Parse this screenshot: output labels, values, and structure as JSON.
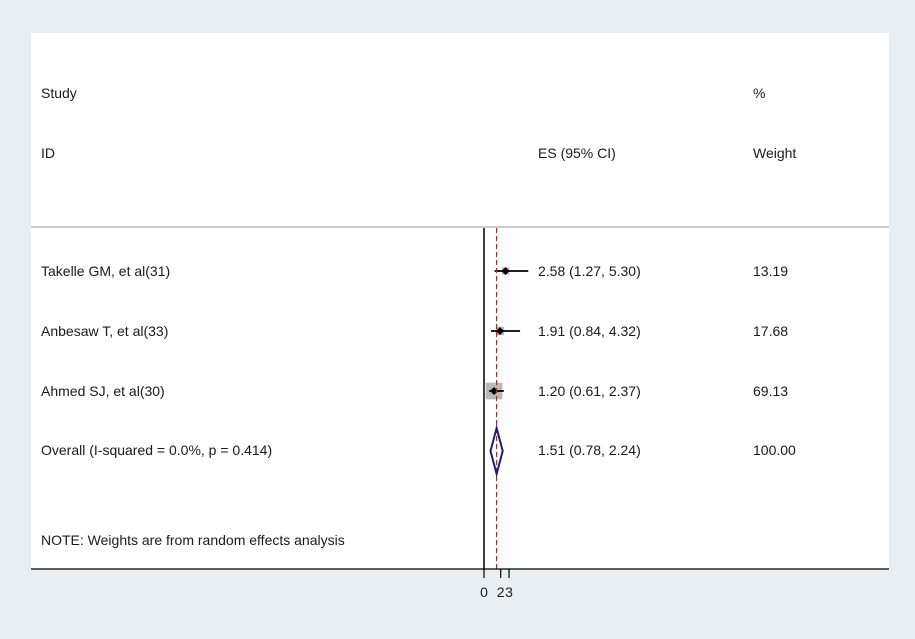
{
  "chart_data": {
    "type": "forest",
    "header": {
      "study_line1": "Study",
      "study_line2": "ID",
      "es_label": "ES (95% CI)",
      "weight_line1": "%",
      "weight_line2": "Weight"
    },
    "rows": [
      {
        "label": "Takelle GM, et al(31)",
        "es": 2.58,
        "lower": 1.27,
        "upper": 5.3,
        "es_text": "2.58 (1.27, 5.30)",
        "weight": "13.19",
        "weight_value": 13.19
      },
      {
        "label": "Anbesaw T, et al(33)",
        "es": 1.91,
        "lower": 0.84,
        "upper": 4.32,
        "es_text": "1.91 (0.84, 4.32)",
        "weight": "17.68",
        "weight_value": 17.68
      },
      {
        "label": "Ahmed SJ, et al(30)",
        "es": 1.2,
        "lower": 0.61,
        "upper": 2.37,
        "es_text": "1.20 (0.61, 2.37)",
        "weight": "69.13",
        "weight_value": 69.13
      }
    ],
    "overall": {
      "label": "Overall  (I-squared = 0.0%, p = 0.414)",
      "es": 1.51,
      "lower": 0.78,
      "upper": 2.24,
      "es_text": "1.51 (0.78, 2.24)",
      "weight": "100.00"
    },
    "note": "NOTE: Weights are from random effects analysis",
    "x_ticks": [
      {
        "value": 0,
        "label": "0"
      },
      {
        "value": 2,
        "label": "2"
      },
      {
        "value": 3,
        "label": "3"
      }
    ],
    "null_line": 0,
    "colors": {
      "marker": "#000000",
      "weight_box": "#b8b8b8",
      "diamond": "#1e1a7a",
      "overall_line": "#9b2f2f",
      "axis": "#000000",
      "background": "#e8eef2",
      "panel": "#ffffff"
    }
  }
}
